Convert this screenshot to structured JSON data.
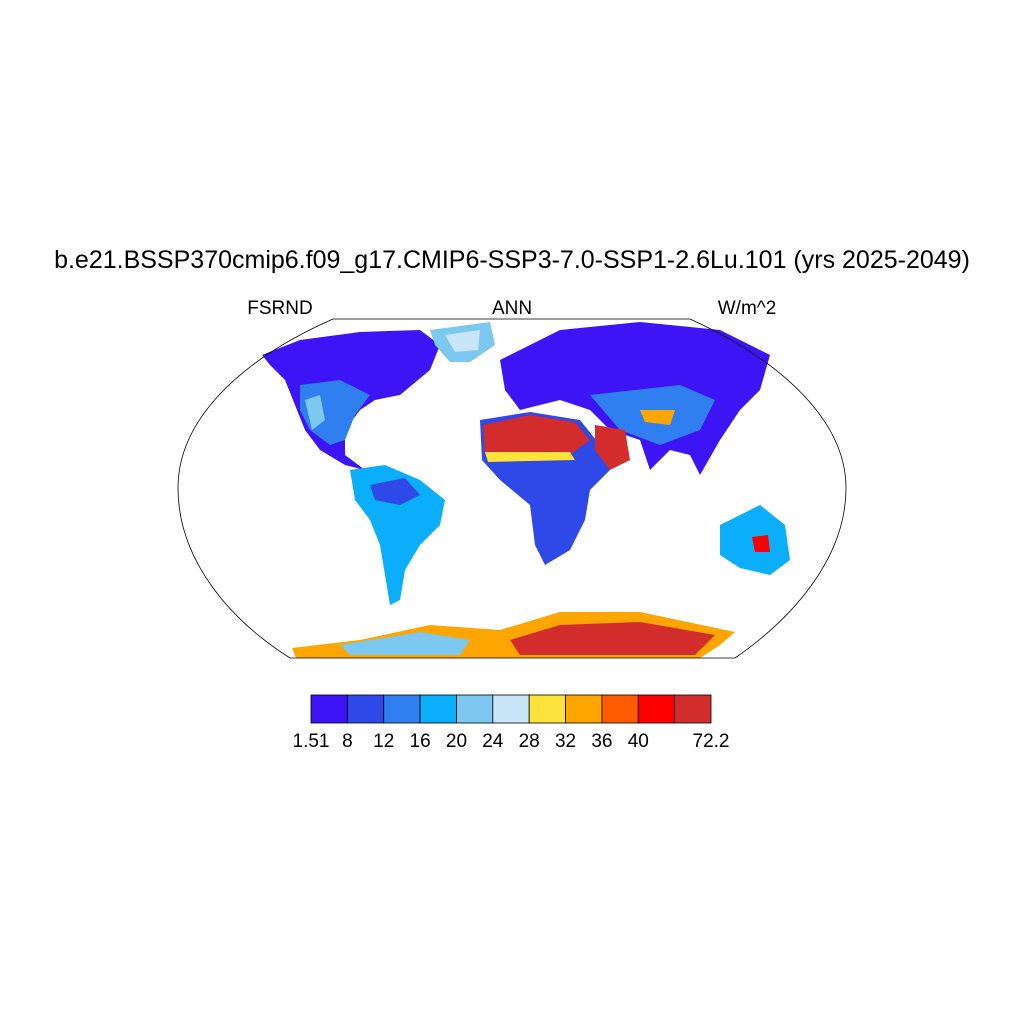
{
  "title": "b.e21.BSSP370cmip6.f09_g17.CMIP6-SSP3-7.0-SSP1-2.6Lu.101 (yrs 2025-2049)",
  "left_label": "FSRND",
  "center_label": "ANN",
  "right_label": "W/m^2",
  "colorbar": {
    "colors": [
      "#3c14f5",
      "#2f48e8",
      "#2f7ff0",
      "#0aaefa",
      "#7cc8f0",
      "#c8e6f8",
      "#fde23c",
      "#fea500",
      "#fe5a00",
      "#fe0000",
      "#d22c2c"
    ],
    "labels": [
      "1.51",
      "8",
      "12",
      "16",
      "20",
      "24",
      "28",
      "32",
      "36",
      "40",
      null,
      "72.2"
    ]
  }
}
